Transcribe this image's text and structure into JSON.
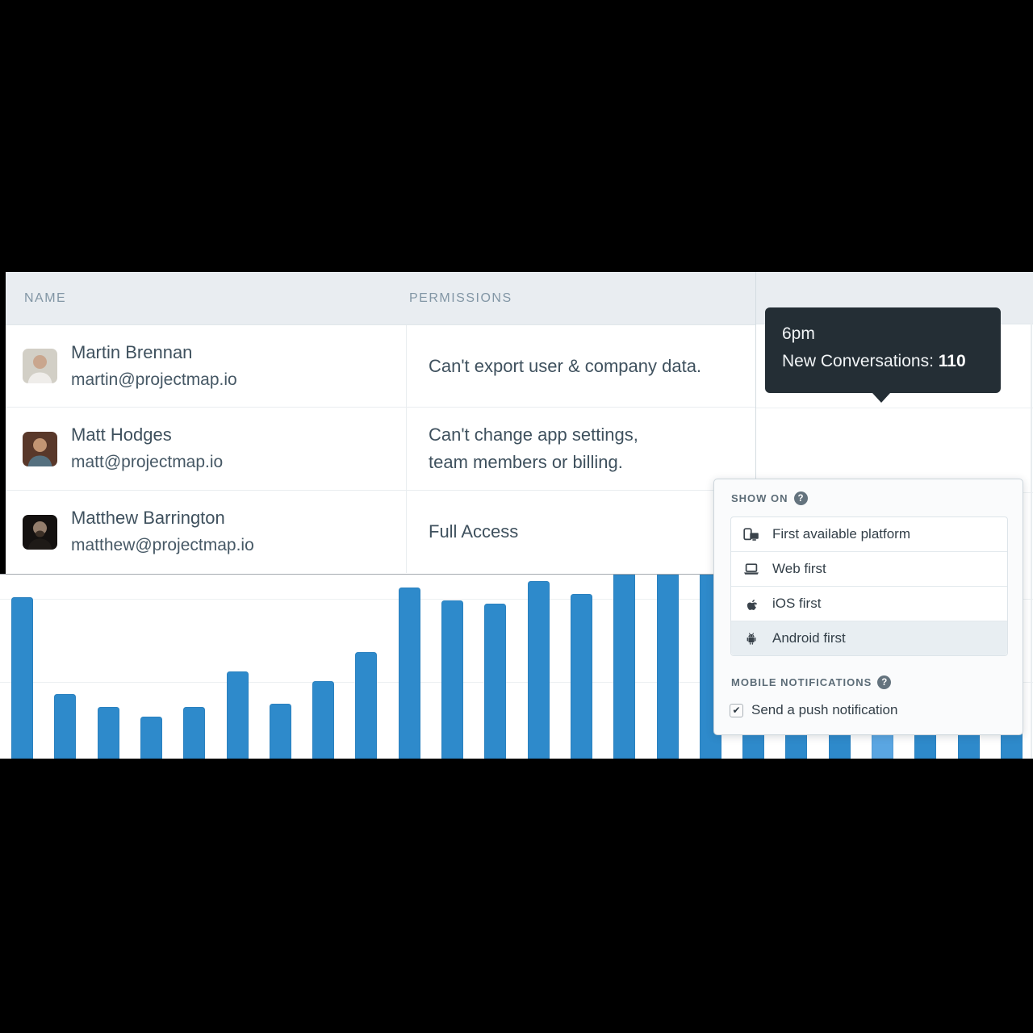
{
  "table": {
    "columns": [
      "NAME",
      "PERMISSIONS"
    ],
    "rows": [
      {
        "name": "Martin Brennan",
        "email": "martin@projectmap.io",
        "permissions_lines": [
          "Can't export user & company data."
        ],
        "avatar": {
          "bg": "#d2cfc6",
          "skin": "#c9a68e",
          "hair": "transparent",
          "beard": "transparent",
          "shirt": "#efedea"
        }
      },
      {
        "name": "Matt Hodges",
        "email": "matt@projectmap.io",
        "permissions_lines": [
          "Can't change app settings,",
          "team members or billing."
        ],
        "avatar": {
          "bg": "#59382a",
          "skin": "#c39573",
          "hair": "#3a2417",
          "beard": "transparent",
          "shirt": "#55707f"
        }
      },
      {
        "name": "Matthew Barrington",
        "email": "matthew@projectmap.io",
        "permissions_lines": [
          "Full Access"
        ],
        "avatar": {
          "bg": "#141110",
          "skin": "#937d6c",
          "hair": "#2a211b",
          "beard": "#3b2f26",
          "shirt": "#1e1a17"
        }
      }
    ]
  },
  "tooltip": {
    "time": "6pm",
    "label": "New Conversations: ",
    "value": "110"
  },
  "dropdown": {
    "help_glyph": "?",
    "check_glyph": "✔",
    "show_on": {
      "heading": "SHOW ON",
      "options": [
        {
          "label": "First available platform",
          "icon": "devices-icon",
          "selected": false
        },
        {
          "label": "Web first",
          "icon": "laptop-icon",
          "selected": false
        },
        {
          "label": "iOS first",
          "icon": "apple-icon",
          "selected": false
        },
        {
          "label": "Android first",
          "icon": "android-icon",
          "selected": true
        }
      ]
    },
    "mobile_notifications": {
      "heading": "MOBILE NOTIFICATIONS",
      "checkbox_label": "Send a push notification",
      "checked": true
    }
  },
  "chart_data": {
    "type": "bar",
    "series_label": "New Conversations",
    "x_axis": "hourly (labels hidden; highlighted bar is 6pm)",
    "values": [
      50,
      20,
      16,
      13,
      16,
      27,
      17,
      24,
      33,
      53,
      49,
      48,
      55,
      51,
      57,
      57,
      57,
      100,
      110,
      100,
      110,
      103,
      110,
      110
    ],
    "highlighted_index": 20,
    "highlighted_tooltip": {
      "time": "6pm",
      "value": 110
    },
    "baseline_hidden": true,
    "bar_color": "#2e8acb",
    "highlight_color": "#5aa6e2",
    "grid": true
  },
  "colors": {
    "header_band": "#e9edf1",
    "tooltip_bg": "#242e35",
    "text_dark": "#3f515e",
    "panel_bg": "#fafbfc",
    "selected_option_bg": "#e8eef2"
  }
}
